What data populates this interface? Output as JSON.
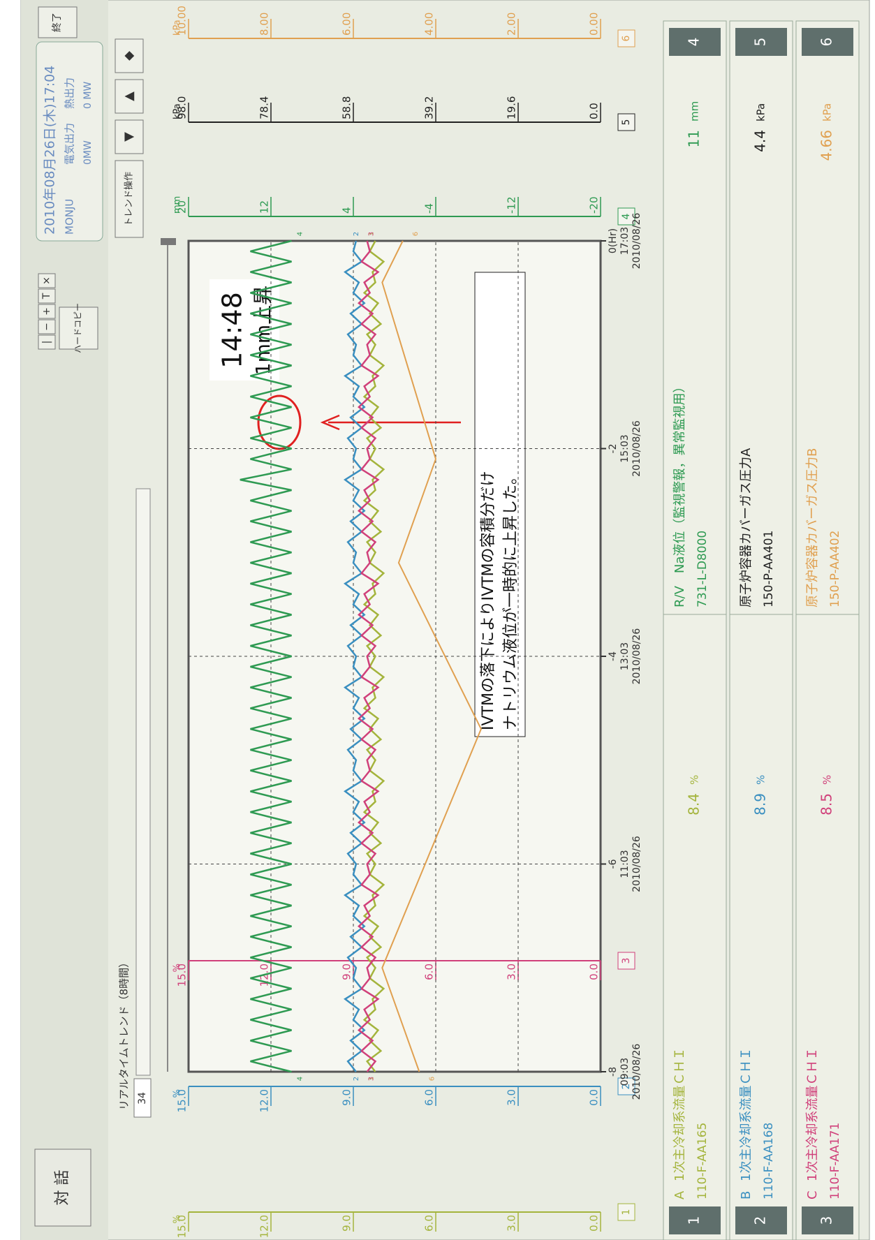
{
  "header": {
    "title": "対 話",
    "window_buttons": [
      "|",
      "−",
      "+",
      "T",
      "×"
    ],
    "hardcopy": "ハードコピー",
    "datetime": "2010年08月26日(木)17:04",
    "plant": "MONJU",
    "electric_label": "電気出力",
    "electric_value": "0MW",
    "thermal_label": "熱出力",
    "thermal_value": "0 MW",
    "exit": "終了"
  },
  "toolbar": {
    "title": "リアルタイムトレンド（8時間）",
    "count": 34,
    "trend_button": "トレンド操作",
    "buttons": [
      "▼",
      "▲",
      "◆"
    ]
  },
  "chart_data": {
    "type": "line",
    "xlim": [
      -8,
      0
    ],
    "xticks": [
      -8,
      -6,
      -4,
      -2,
      {
        "value": 0,
        "label": "0(Hr)"
      }
    ],
    "xtick_times": [
      "09:03",
      "11:03",
      "13:03",
      "15:03",
      "17:03"
    ],
    "xtick_dates": [
      "2010/08/26",
      "2010/08/26",
      "2010/08/26",
      "2010/08/26",
      "2010/08/26"
    ],
    "grid": true,
    "axes": [
      {
        "unit": "%",
        "color": "#a4b43c",
        "box": "1",
        "side": "left",
        "lim": [
          0,
          15
        ],
        "ticks": [
          {
            "value": 0,
            "label": "0.0"
          },
          {
            "value": 3,
            "label": "3.0"
          },
          {
            "value": 6,
            "label": "6.0"
          },
          {
            "value": 9,
            "label": "9.0"
          },
          {
            "value": 12,
            "label": "12.0"
          },
          {
            "value": 15,
            "label": "15.0"
          }
        ]
      },
      {
        "unit": "%",
        "color": "#3a8fc0",
        "box": "2",
        "side": "left",
        "lim": [
          0,
          15
        ],
        "ticks": [
          {
            "value": 0,
            "label": "0.0"
          },
          {
            "value": 3,
            "label": "3.0"
          },
          {
            "value": 6,
            "label": "6.0"
          },
          {
            "value": 9,
            "label": "9.0"
          },
          {
            "value": 12,
            "label": "12.0"
          },
          {
            "value": 15,
            "label": "15.0"
          }
        ]
      },
      {
        "unit": "%",
        "color": "#d0407a",
        "box": "3",
        "side": "left",
        "lim": [
          0,
          15
        ],
        "ticks": [
          {
            "value": 0,
            "label": "0.0"
          },
          {
            "value": 3,
            "label": "3.0"
          },
          {
            "value": 6,
            "label": "6.0"
          },
          {
            "value": 9,
            "label": "9.0"
          },
          {
            "value": 12,
            "label": "12.0"
          },
          {
            "value": 15,
            "label": "15.0"
          }
        ]
      },
      {
        "unit": "mm",
        "color": "#2e9a52",
        "box": "4",
        "side": "right",
        "lim": [
          -20,
          20
        ],
        "ticks": [
          -20,
          -12,
          -4,
          4,
          12,
          20
        ]
      },
      {
        "unit": "kPa",
        "color": "#222222",
        "box": "5",
        "side": "right",
        "lim": [
          0,
          98
        ],
        "ticks": [
          {
            "value": 0,
            "label": "0.0"
          },
          19.6,
          39.2,
          58.8,
          78.4,
          {
            "value": 98,
            "label": "98.0"
          }
        ]
      },
      {
        "unit": "kPa",
        "color": "#e0a050",
        "box": "6",
        "side": "right",
        "lim": [
          0,
          10
        ],
        "ticks": [
          {
            "value": 0,
            "label": "0.00"
          },
          {
            "value": 2,
            "label": "2.00"
          },
          {
            "value": 4,
            "label": "4.00"
          },
          {
            "value": 6,
            "label": "6.00"
          },
          {
            "value": 8,
            "label": "8.00"
          },
          {
            "value": 10,
            "label": "10.00"
          }
        ]
      }
    ],
    "x": [
      -8,
      -7.9,
      -7.8,
      -7.7,
      -7.6,
      -7.5,
      -7.4,
      -7.3,
      -7.2,
      -7.1,
      -7,
      -6.9,
      -6.8,
      -6.7,
      -6.6,
      -6.5,
      -6.4,
      -6.3,
      -6.2,
      -6.1,
      -6,
      -5.9,
      -5.8,
      -5.7,
      -5.6,
      -5.5,
      -5.4,
      -5.3,
      -5.2,
      -5.1,
      -5,
      -4.9,
      -4.8,
      -4.7,
      -4.6,
      -4.5,
      -4.4,
      -4.3,
      -4.2,
      -4.1,
      -4,
      -3.9,
      -3.8,
      -3.7,
      -3.6,
      -3.5,
      -3.4,
      -3.3,
      -3.2,
      -3.1,
      -3,
      -2.9,
      -2.8,
      -2.7,
      -2.6,
      -2.5,
      -2.4,
      -2.3,
      -2.2,
      -2.1,
      -2,
      -1.9,
      -1.8,
      -1.7,
      -1.6,
      -1.5,
      -1.4,
      -1.3,
      -1.2,
      -1.1,
      -1,
      -0.9,
      -0.8,
      -0.7,
      -0.6,
      -0.5,
      -0.4,
      -0.3,
      -0.2,
      -0.1,
      0
    ],
    "series": [
      {
        "tag": "1",
        "color": "#a4b43c",
        "axis": 0,
        "values": [
          8.2,
          8.5,
          8,
          8.4,
          8.1,
          8.6,
          8.2,
          8.3,
          7.9,
          8.4,
          8.2,
          8.5,
          8,
          8.4,
          8.1,
          8.6,
          8.2,
          8.3,
          7.9,
          8.4,
          8.2,
          8.5,
          8,
          8.4,
          8.1,
          8.6,
          8.2,
          8.3,
          7.9,
          8.4,
          8.2,
          8.5,
          8,
          8.4,
          8.1,
          8.6,
          8.2,
          8.3,
          7.9,
          8.4,
          8.2,
          8.5,
          8,
          8.4,
          8.1,
          8.6,
          8.2,
          8.3,
          7.9,
          8.4,
          8.2,
          8.5,
          8,
          8.4,
          8.1,
          8.6,
          8.2,
          8.3,
          7.9,
          8.4,
          8.2,
          8.5,
          8,
          8.4,
          8.1,
          8.6,
          8.2,
          8.3,
          7.9,
          8.4,
          8.2,
          8.5,
          8,
          8.4,
          8.1,
          8.6,
          8.2,
          8.3,
          7.9,
          8.4,
          8.2
        ]
      },
      {
        "tag": "2",
        "color": "#3a8fc0",
        "axis": 1,
        "values": [
          8.9,
          9.2,
          8.7,
          9.1,
          8.6,
          9,
          8.8,
          9.3,
          8.7,
          9,
          8.9,
          9.2,
          8.7,
          9.1,
          8.6,
          9,
          8.8,
          9.3,
          8.7,
          9,
          8.9,
          9.2,
          8.7,
          9.1,
          8.6,
          9,
          8.8,
          9.3,
          8.7,
          9,
          8.9,
          9.2,
          8.7,
          9.1,
          8.6,
          9,
          8.8,
          9.3,
          8.7,
          9,
          8.9,
          9.2,
          8.7,
          9.1,
          8.6,
          9,
          8.8,
          9.3,
          8.7,
          9,
          8.9,
          9.2,
          8.7,
          9.1,
          8.6,
          9,
          8.8,
          9.3,
          8.7,
          9,
          8.9,
          9.2,
          8.7,
          9.1,
          8.6,
          9,
          8.8,
          9.3,
          8.7,
          9,
          8.9,
          9.2,
          8.7,
          9.1,
          8.6,
          9,
          8.8,
          9.3,
          8.7,
          9,
          8.9
        ]
      },
      {
        "tag": "3",
        "color": "#d0407a",
        "axis": 2,
        "values": [
          8.5,
          8.2,
          8.7,
          8.3,
          8.8,
          8.4,
          8.6,
          8.1,
          8.7,
          8.4,
          8.5,
          8.2,
          8.7,
          8.3,
          8.8,
          8.4,
          8.6,
          8.1,
          8.7,
          8.4,
          8.5,
          8.2,
          8.7,
          8.3,
          8.8,
          8.4,
          8.6,
          8.1,
          8.7,
          8.4,
          8.5,
          8.2,
          8.7,
          8.3,
          8.8,
          8.4,
          8.6,
          8.1,
          8.7,
          8.4,
          8.5,
          8.2,
          8.7,
          8.3,
          8.8,
          8.4,
          8.6,
          8.1,
          8.7,
          8.4,
          8.5,
          8.2,
          8.7,
          8.3,
          8.8,
          8.4,
          8.6,
          8.1,
          8.7,
          8.4,
          8.5,
          8.2,
          8.7,
          8.3,
          8.8,
          8.4,
          8.6,
          8.1,
          8.7,
          8.4,
          8.5,
          8.2,
          8.7,
          8.3,
          8.8,
          8.4,
          8.6,
          8.1,
          8.7,
          8.4,
          8.5
        ]
      },
      {
        "tag": "4",
        "color": "#2e9a52",
        "axis": 3,
        "values": [
          10,
          14,
          10,
          14,
          10,
          14,
          10,
          14,
          10,
          14,
          10,
          14,
          10,
          14,
          10,
          14,
          10,
          14,
          10,
          14,
          10,
          14,
          10,
          14,
          10,
          14,
          10,
          14,
          10,
          14,
          10,
          14,
          10,
          14,
          10,
          14,
          10,
          14,
          10,
          14,
          10,
          14,
          10,
          14,
          10,
          14,
          10,
          14,
          10,
          14,
          10,
          14,
          10,
          14,
          10,
          14,
          10,
          15,
          10,
          14,
          10,
          14,
          10,
          14,
          10,
          14,
          10,
          14,
          10,
          14,
          10,
          14,
          10,
          14,
          10,
          14,
          10,
          14,
          10,
          14,
          10
        ]
      },
      {
        "tag": "6",
        "color": "#e0a050",
        "axis": 5,
        "x": [
          -8,
          -7,
          -4.7,
          -3.1,
          -2.1,
          -0.4,
          0
        ],
        "values": [
          4.4,
          5.3,
          2.9,
          4.9,
          4,
          5.3,
          4.8
        ]
      }
    ]
  },
  "legend": [
    {
      "number": "1",
      "letter": "A",
      "label": "1次主冷却系流量ＣＨＩ",
      "id": "110-F-AA165",
      "value": 8.4,
      "unit": "%"
    },
    {
      "number": "2",
      "letter": "B",
      "label": "1次主冷却系流量ＣＨＩ",
      "id": "110-F-AA168",
      "value": 8.9,
      "unit": "%"
    },
    {
      "number": "3",
      "letter": "C",
      "label": "1次主冷却系流量ＣＨＩ",
      "id": "110-F-AA171",
      "value": 8.5,
      "unit": "%"
    },
    {
      "number": "4",
      "label": "R/V　Na液位（監視警報，異常監視用）",
      "id": "731-L-D8000",
      "value": 11,
      "unit": "mm"
    },
    {
      "number": "5",
      "label": "原子炉容器カバーガス圧力A",
      "id": "150-P-AA401",
      "value": 4.4,
      "unit": "kPa"
    },
    {
      "number": "6",
      "label": "原子炉容器カバーガス圧力B",
      "id": "150-P-AA402",
      "value": 4.66,
      "unit": "kPa"
    }
  ],
  "annotations": {
    "time": "14:48",
    "rise": "1mm上昇",
    "note": [
      "IVTMの落下によりIVTMの容積分だけ",
      "ナトリウム液位が一時的に上昇した。"
    ]
  }
}
